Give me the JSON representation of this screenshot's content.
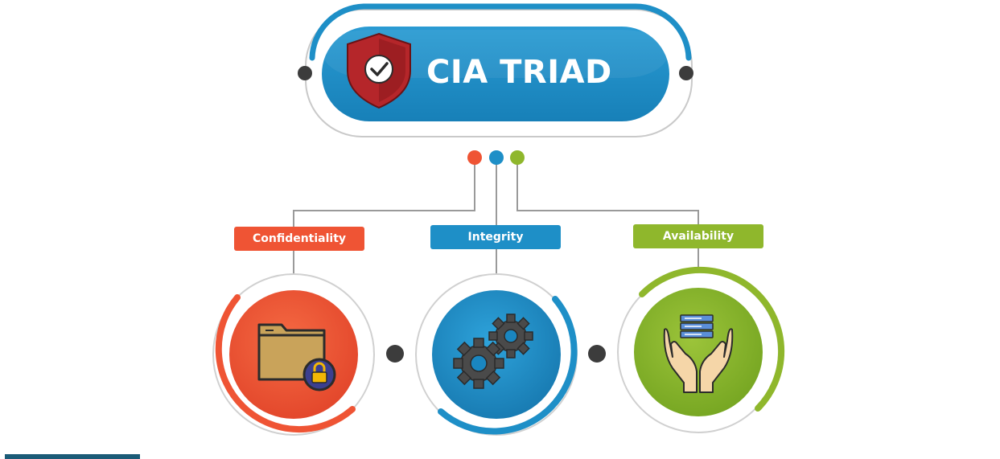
{
  "title": "CIA TRIAD",
  "pillars": [
    {
      "label": "Confidentiality",
      "color": "#ef5434",
      "icon": "locked-folder-icon"
    },
    {
      "label": "Integrity",
      "color": "#1e8fc7",
      "icon": "gears-icon"
    },
    {
      "label": "Availability",
      "color": "#8fb72c",
      "icon": "hands-holding-server-icon"
    }
  ],
  "header_icon": "shield-check-icon",
  "colors": {
    "title_pill": "#1e8fc7",
    "shield": "#b5262a",
    "connector": "#9a9a9a",
    "dot": "#3c3c3c"
  }
}
